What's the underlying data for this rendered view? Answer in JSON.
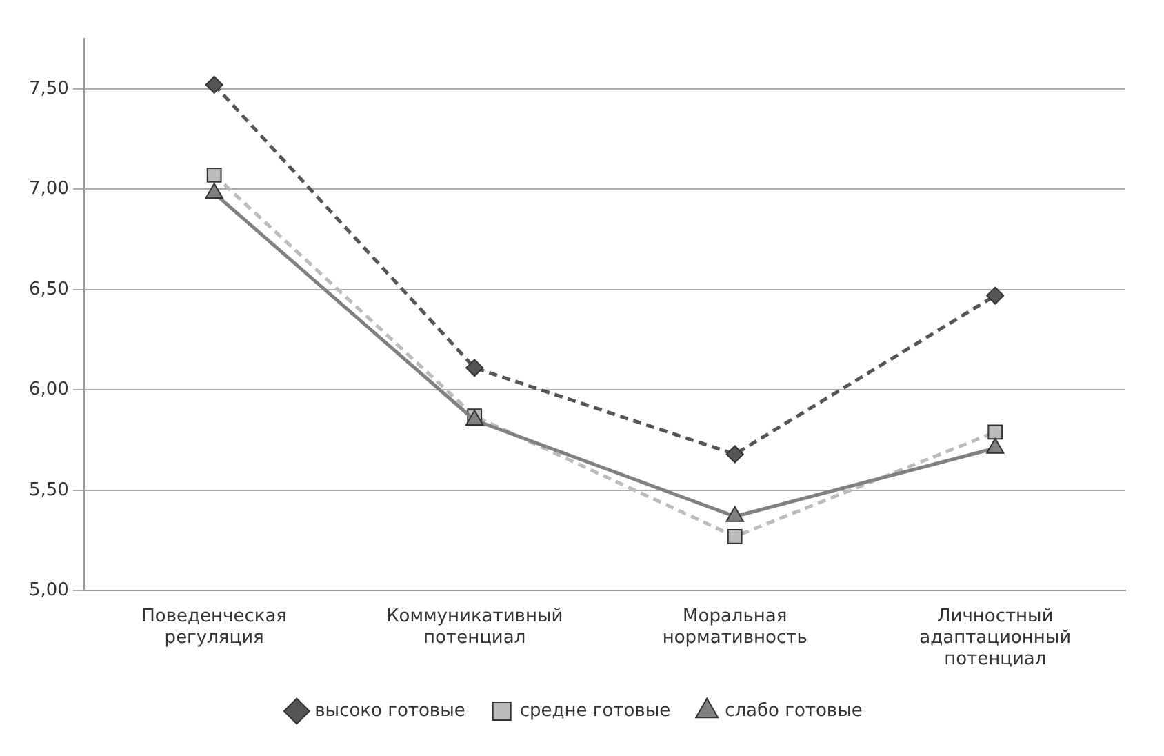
{
  "chart_data": {
    "type": "line",
    "categories": [
      "Поведенческая регуляция",
      "Коммуникативный потенциал",
      "Моральная нормативность",
      "Личностный адаптационный потенциал"
    ],
    "series": [
      {
        "name": "высоко готовые",
        "color": "#555555",
        "values": [
          7.52,
          6.11,
          5.68,
          6.47
        ],
        "marker": "diamond",
        "line_style": "dashed"
      },
      {
        "name": "средне готовые",
        "color": "#bbbbbb",
        "values": [
          7.07,
          5.87,
          5.27,
          5.79
        ],
        "marker": "square",
        "line_style": "dashed"
      },
      {
        "name": "слабо готовые",
        "color": "#808080",
        "values": [
          6.98,
          5.85,
          5.37,
          5.71
        ],
        "marker": "triangle",
        "line_style": "solid"
      }
    ],
    "ylim": [
      5,
      7.75
    ],
    "yticks": [
      {
        "value": 5,
        "label": "5,00"
      },
      {
        "value": 5.5,
        "label": "5,50"
      },
      {
        "value": 6,
        "label": "6,00"
      },
      {
        "value": 6.5,
        "label": "6,50"
      },
      {
        "value": 7,
        "label": "7,00"
      },
      {
        "value": 7.5,
        "label": "7,50"
      }
    ],
    "grid": "y",
    "legend": "bottom"
  }
}
